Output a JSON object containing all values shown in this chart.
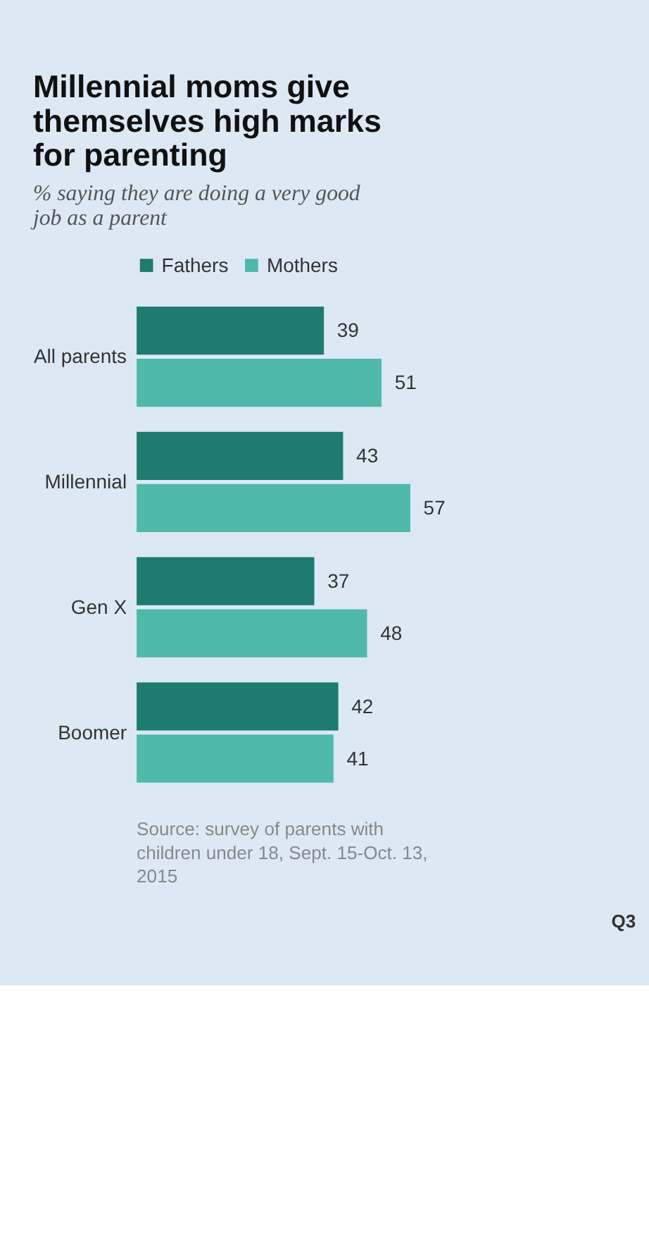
{
  "chart_data": {
    "type": "bar",
    "orientation": "horizontal",
    "title": "Millennial moms give themselves high marks for parenting",
    "subtitle": "% saying they are doing a very good job as a parent",
    "categories": [
      "All parents",
      "Millennial",
      "Gen X",
      "Boomer"
    ],
    "series": [
      {
        "name": "Fathers",
        "color": "#1e7b6f",
        "values": [
          39,
          43,
          37,
          42
        ]
      },
      {
        "name": "Mothers",
        "color": "#4fb9aa",
        "values": [
          51,
          57,
          48,
          41
        ]
      }
    ],
    "data_labels": true,
    "legend": "top",
    "annotations": [
      "Source: survey of parents with children under 18, Sept. 15-Oct. 13, 2015",
      "Q3"
    ]
  }
}
